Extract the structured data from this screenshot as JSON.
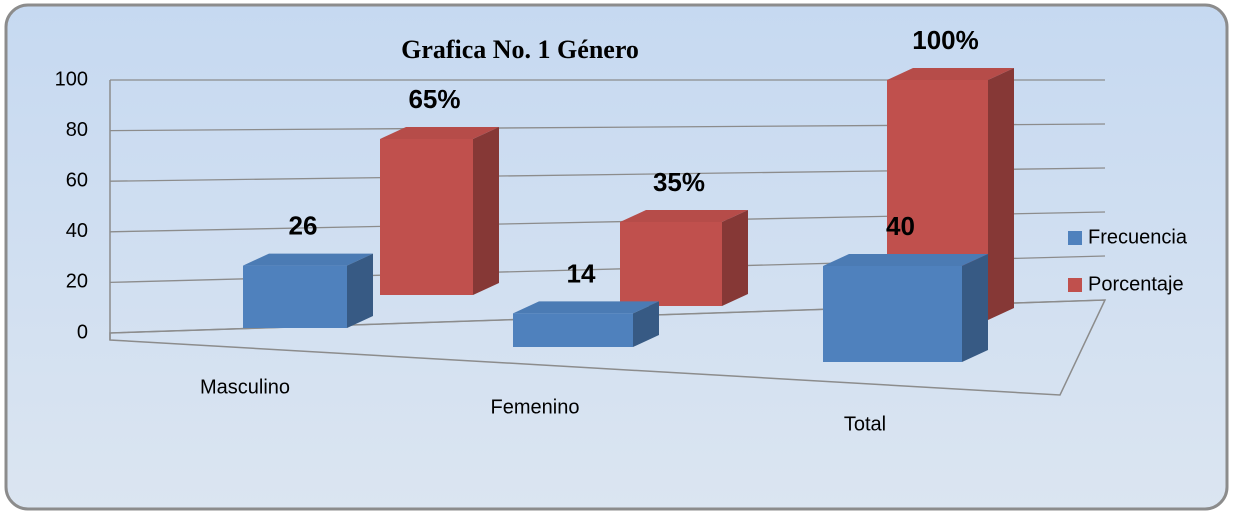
{
  "chart_data": {
    "type": "bar3d",
    "title": "Grafica No. 1   Género",
    "categories": [
      "Masculino",
      "Femenino",
      "Total"
    ],
    "series": [
      {
        "name": "Frecuencia",
        "color": "#4f81bd",
        "values": [
          26,
          14,
          40
        ]
      },
      {
        "name": "Porcentaje",
        "color": "#c0504d",
        "values": [
          65,
          35,
          100
        ],
        "value_labels": [
          "65%",
          "35%",
          "100%"
        ]
      }
    ],
    "ylim": [
      0,
      100
    ],
    "yticks": [
      0,
      20,
      40,
      60,
      80,
      100
    ],
    "grid": true,
    "legend": "right"
  }
}
